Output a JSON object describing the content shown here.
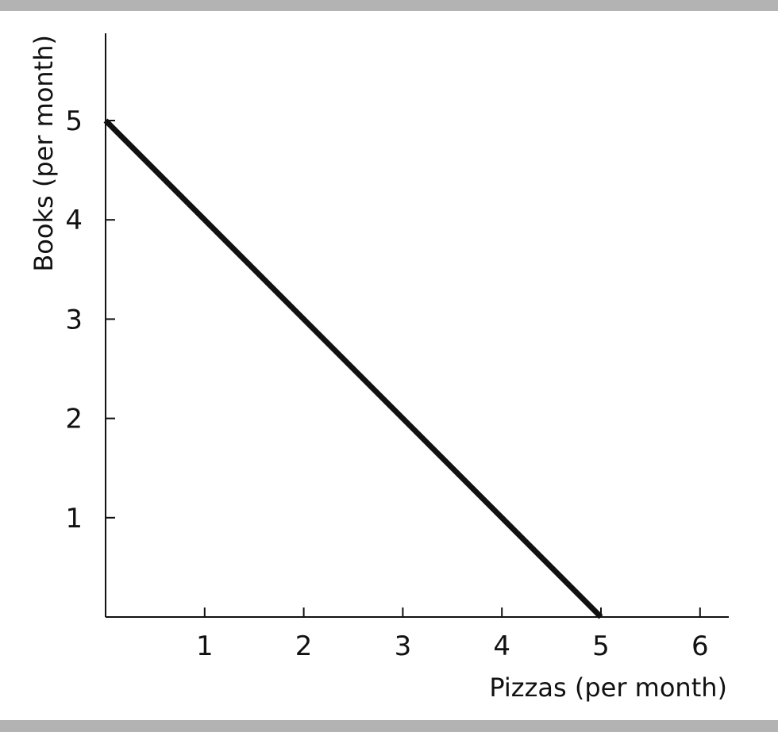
{
  "colors": {
    "band": "#b3b3b3",
    "line": "#111111",
    "axis": "#111111"
  },
  "chart_data": {
    "type": "line",
    "title": "",
    "xlabel": "Pizzas (per month)",
    "ylabel": "Books (per month)",
    "xlim": [
      0,
      6.3
    ],
    "ylim": [
      0,
      5.8
    ],
    "x_ticks": [
      1,
      2,
      3,
      4,
      5,
      6
    ],
    "y_ticks": [
      1,
      2,
      3,
      4,
      5
    ],
    "x_tick_labels": [
      "1",
      "2",
      "3",
      "4",
      "5",
      "6"
    ],
    "y_tick_labels": [
      "1",
      "2",
      "3",
      "4",
      "5"
    ],
    "grid": false,
    "series": [
      {
        "x": [
          0,
          5
        ],
        "y": [
          5,
          0
        ]
      }
    ]
  }
}
